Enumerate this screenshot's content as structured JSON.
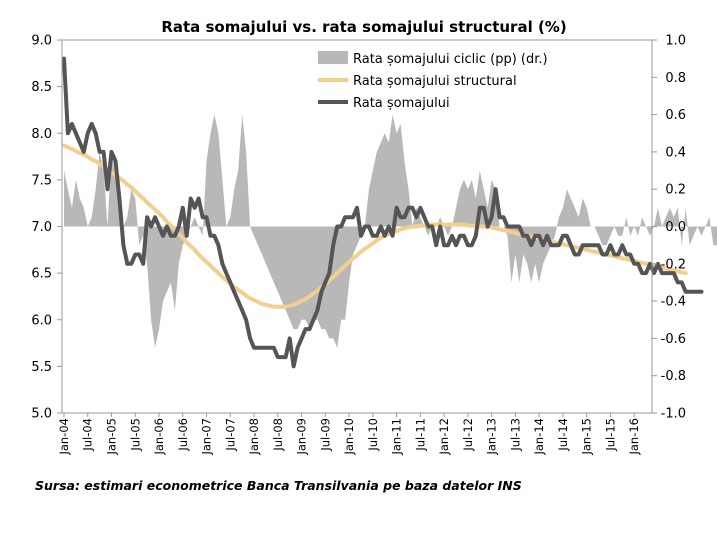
{
  "source_note": "Sursa: estimari econometrice Banca Transilvania pe baza datelor INS",
  "colors": {
    "cyclical": "#b8b8b8",
    "structural": "#f2cf8f",
    "unemployment": "#555555",
    "axis": "#999999"
  },
  "chart_data": {
    "type": "line",
    "title": "Rata somajului vs. rata somajului structural (%)",
    "y_left": {
      "min": 5.0,
      "max": 9.0,
      "step": 0.5,
      "ticks": [
        "5.0",
        "5.5",
        "6.0",
        "6.5",
        "7.0",
        "7.5",
        "8.0",
        "8.5",
        "9.0"
      ]
    },
    "y_right": {
      "min": -1.0,
      "max": 1.0,
      "step": 0.2,
      "ticks": [
        "-1.0",
        "-0.8",
        "-0.6",
        "-0.4",
        "-0.2",
        "0.0",
        "0.2",
        "0.4",
        "0.6",
        "0.8",
        "1.0"
      ]
    },
    "x_start": "2004-01",
    "x_end": "2016-05",
    "x_tick_labels": [
      "Jan-04",
      "Jul-04",
      "Jan-05",
      "Jul-05",
      "Jan-06",
      "Jul-06",
      "Jan-07",
      "Jul-07",
      "Jan-08",
      "Jul-08",
      "Jan-09",
      "Jul-09",
      "Jan-10",
      "Jul-10",
      "Jan-11",
      "Jul-11",
      "Jan-12",
      "Jul-12",
      "Jan-13",
      "Jul-13",
      "Jan-14",
      "Jul-14",
      "Jan-15",
      "Jul-15",
      "Jan-16"
    ],
    "legend": [
      "Rata șomajului ciclic (pp) (dr.)",
      "Rata șomajului structural",
      "Rata șomajului"
    ],
    "legend_position": "top-right",
    "grid": false,
    "series": [
      {
        "name": "Rata șomajului ciclic (pp) (dr.)",
        "type": "area",
        "axis": "right",
        "values": [
          0.3,
          0.2,
          0.1,
          0.25,
          0.15,
          0.1,
          0.0,
          0.05,
          0.2,
          0.4,
          0.3,
          0.0,
          0.4,
          0.25,
          0.15,
          0.0,
          0.05,
          0.2,
          0.15,
          -0.1,
          -0.05,
          -0.2,
          -0.5,
          -0.65,
          -0.55,
          -0.4,
          -0.35,
          -0.3,
          -0.45,
          -0.2,
          -0.1,
          -0.05,
          0.0,
          0.05,
          0.0,
          -0.05,
          0.35,
          0.5,
          0.6,
          0.5,
          0.25,
          0.0,
          0.05,
          0.2,
          0.3,
          0.6,
          0.4,
          0.0,
          -0.05,
          -0.1,
          -0.15,
          -0.2,
          -0.25,
          -0.3,
          -0.35,
          -0.4,
          -0.45,
          -0.5,
          -0.55,
          -0.55,
          -0.5,
          -0.5,
          -0.55,
          -0.5,
          -0.5,
          -0.55,
          -0.55,
          -0.6,
          -0.6,
          -0.65,
          -0.5,
          -0.5,
          -0.3,
          -0.15,
          -0.1,
          -0.05,
          0.0,
          0.2,
          0.3,
          0.4,
          0.45,
          0.5,
          0.45,
          0.6,
          0.5,
          0.55,
          0.35,
          0.2,
          0.0,
          0.1,
          0.05,
          0.0,
          -0.05,
          0.0,
          0.0,
          0.05,
          0.0,
          -0.05,
          0.0,
          0.1,
          0.2,
          0.25,
          0.2,
          0.25,
          0.15,
          0.3,
          0.2,
          0.1,
          0.25,
          0.2,
          0.0,
          0.0,
          -0.05,
          -0.3,
          -0.15,
          -0.3,
          -0.15,
          -0.2,
          -0.3,
          -0.2,
          -0.3,
          -0.2,
          -0.15,
          -0.1,
          -0.05,
          0.05,
          0.1,
          0.2,
          0.15,
          0.1,
          0.05,
          0.15,
          0.1,
          0.0,
          0.0,
          -0.05,
          -0.1,
          -0.1,
          -0.05,
          0.0,
          -0.05,
          -0.05,
          0.05,
          -0.05,
          0.0,
          -0.05,
          0.05,
          0.0,
          -0.05,
          0.0,
          0.1,
          0.0,
          0.05,
          0.1,
          0.05,
          0.1,
          -0.1,
          0.1,
          -0.1,
          -0.05,
          0.0,
          -0.05,
          0.0,
          0.05,
          -0.1,
          -0.1,
          -0.1,
          -0.15,
          -0.2,
          -0.2
        ]
      },
      {
        "name": "Rata șomajului structural",
        "type": "line",
        "axis": "left",
        "values": [
          7.87,
          7.85,
          7.83,
          7.81,
          7.79,
          7.77,
          7.75,
          7.72,
          7.7,
          7.67,
          7.64,
          7.61,
          7.58,
          7.55,
          7.52,
          7.49,
          7.45,
          7.42,
          7.38,
          7.34,
          7.3,
          7.26,
          7.22,
          7.18,
          7.14,
          7.1,
          7.05,
          7.01,
          6.97,
          6.92,
          6.88,
          6.83,
          6.79,
          6.75,
          6.7,
          6.66,
          6.62,
          6.58,
          6.54,
          6.5,
          6.46,
          6.42,
          6.39,
          6.35,
          6.32,
          6.29,
          6.26,
          6.23,
          6.21,
          6.19,
          6.17,
          6.16,
          6.15,
          6.14,
          6.14,
          6.14,
          6.14,
          6.15,
          6.16,
          6.18,
          6.2,
          6.22,
          6.25,
          6.28,
          6.31,
          6.35,
          6.38,
          6.42,
          6.46,
          6.5,
          6.54,
          6.58,
          6.62,
          6.66,
          6.69,
          6.73,
          6.76,
          6.79,
          6.82,
          6.85,
          6.88,
          6.9,
          6.92,
          6.94,
          6.95,
          6.97,
          6.98,
          6.99,
          7.0,
          7.0,
          7.01,
          7.01,
          7.01,
          7.02,
          7.02,
          7.02,
          7.02,
          7.02,
          7.02,
          7.02,
          7.02,
          7.02,
          7.01,
          7.01,
          7.01,
          7.0,
          7.0,
          6.99,
          6.99,
          6.98,
          6.97,
          6.96,
          6.95,
          6.94,
          6.93,
          6.92,
          6.91,
          6.9,
          6.89,
          6.88,
          6.87,
          6.86,
          6.85,
          6.84,
          6.83,
          6.82,
          6.81,
          6.8,
          6.79,
          6.78,
          6.77,
          6.76,
          6.75,
          6.74,
          6.73,
          6.72,
          6.71,
          6.7,
          6.69,
          6.68,
          6.67,
          6.66,
          6.65,
          6.64,
          6.63,
          6.62,
          6.61,
          6.6,
          6.59,
          6.58,
          6.57,
          6.56,
          6.55,
          6.54,
          6.53,
          6.52,
          6.51,
          6.5
        ]
      },
      {
        "name": "Rata șomajului",
        "type": "line",
        "axis": "left",
        "values": [
          8.8,
          8.0,
          8.1,
          8.0,
          7.9,
          7.8,
          8.0,
          8.1,
          8.0,
          7.8,
          7.8,
          7.4,
          7.8,
          7.7,
          7.3,
          6.8,
          6.6,
          6.6,
          6.7,
          6.7,
          6.6,
          7.1,
          7.0,
          7.1,
          7.0,
          6.9,
          7.0,
          6.9,
          6.9,
          7.0,
          7.2,
          6.9,
          7.3,
          7.2,
          7.3,
          7.1,
          7.1,
          6.9,
          6.9,
          6.8,
          6.6,
          6.5,
          6.4,
          6.3,
          6.2,
          6.1,
          6.0,
          5.8,
          5.7,
          5.7,
          5.7,
          5.7,
          5.7,
          5.7,
          5.6,
          5.6,
          5.6,
          5.8,
          5.5,
          5.7,
          5.8,
          5.9,
          5.9,
          6.0,
          6.1,
          6.3,
          6.4,
          6.5,
          6.8,
          7.0,
          7.0,
          7.1,
          7.1,
          7.1,
          7.2,
          6.9,
          7.0,
          7.0,
          6.9,
          6.9,
          7.0,
          6.9,
          7.0,
          6.9,
          7.2,
          7.1,
          7.1,
          7.2,
          7.2,
          7.1,
          7.2,
          7.1,
          7.0,
          7.0,
          6.8,
          7.0,
          6.8,
          6.8,
          6.9,
          6.8,
          6.9,
          6.9,
          6.8,
          6.8,
          6.9,
          7.2,
          7.2,
          7.0,
          7.1,
          7.4,
          7.1,
          7.1,
          7.0,
          7.0,
          7.0,
          7.0,
          6.9,
          6.9,
          6.8,
          6.9,
          6.9,
          6.8,
          6.9,
          6.8,
          6.8,
          6.8,
          6.9,
          6.9,
          6.8,
          6.7,
          6.7,
          6.8,
          6.8,
          6.8,
          6.8,
          6.8,
          6.7,
          6.7,
          6.8,
          6.7,
          6.7,
          6.8,
          6.7,
          6.7,
          6.6,
          6.6,
          6.5,
          6.5,
          6.6,
          6.5,
          6.6,
          6.5,
          6.5,
          6.5,
          6.5,
          6.4,
          6.4,
          6.3,
          6.3,
          6.3,
          6.3,
          6.3
        ]
      }
    ]
  }
}
